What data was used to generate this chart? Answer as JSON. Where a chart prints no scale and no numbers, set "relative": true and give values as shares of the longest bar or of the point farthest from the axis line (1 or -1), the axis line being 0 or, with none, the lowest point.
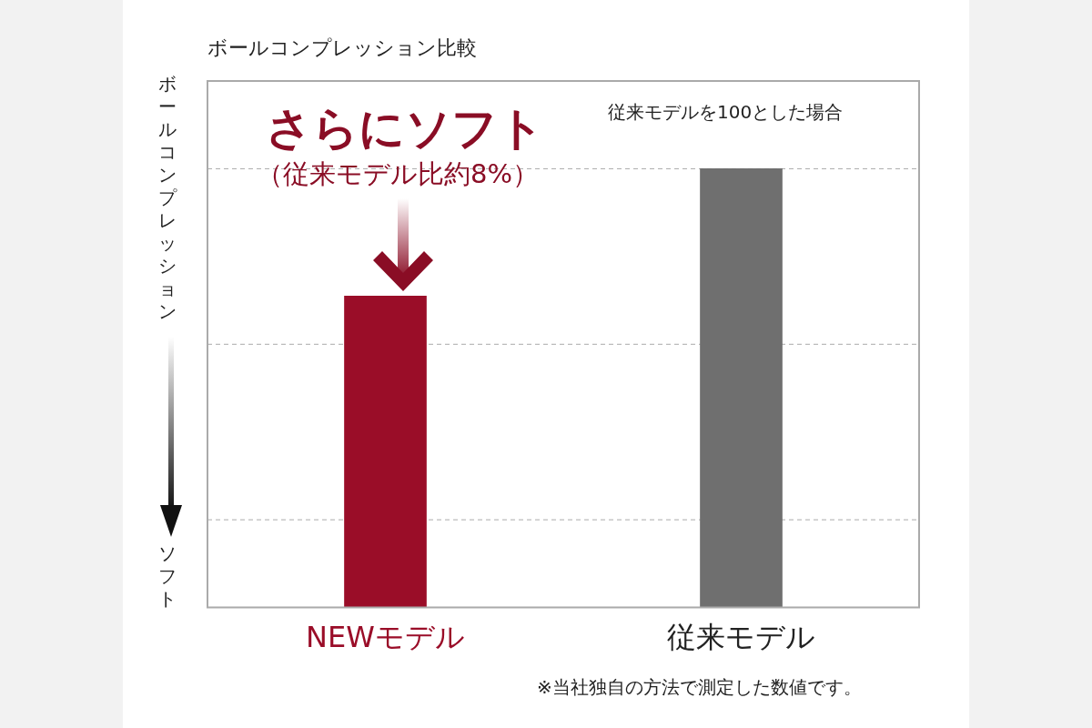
{
  "chart_data": {
    "type": "bar",
    "title": "ボールコンプレッション比較",
    "ylabel": "ボールコンプレッション",
    "categories": [
      "NEWモデル",
      "従来モデル"
    ],
    "values": [
      0.71,
      1
    ],
    "colors": [
      "#9a0d28",
      "#6f6f6f"
    ],
    "relative": true,
    "ref_lines": [
      {
        "axis": "y",
        "value": 1,
        "color": "#aaaaaa",
        "line_style": "dashed"
      },
      {
        "axis": "y",
        "value": 0.6,
        "color": "#aaaaaa",
        "line_style": "dashed"
      },
      {
        "axis": "y",
        "value": 0.2,
        "color": "#aaaaaa",
        "line_style": "dashed"
      }
    ],
    "annotations": [
      "さらにソフト",
      "（従来モデル比約8%）",
      "従来モデルを100とした場合",
      "※当社独自の方法で測定した数値です。",
      "ソフト"
    ]
  }
}
